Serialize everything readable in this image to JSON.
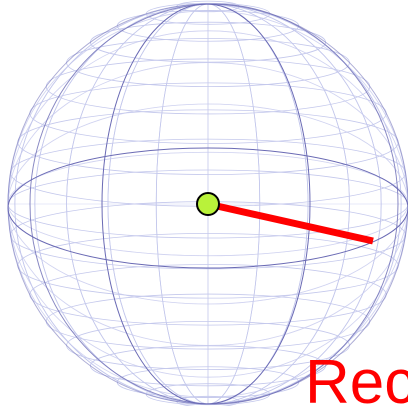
{
  "diagram": {
    "label_text": "Rec",
    "colors": {
      "background": "#ffffff",
      "mesh": "#c4c8ec",
      "great_circles": "#6a6ab4",
      "vector": "#ff0000",
      "center_fill": "#b9f23a",
      "center_stroke": "#000000",
      "label": "#ff0000"
    }
  }
}
